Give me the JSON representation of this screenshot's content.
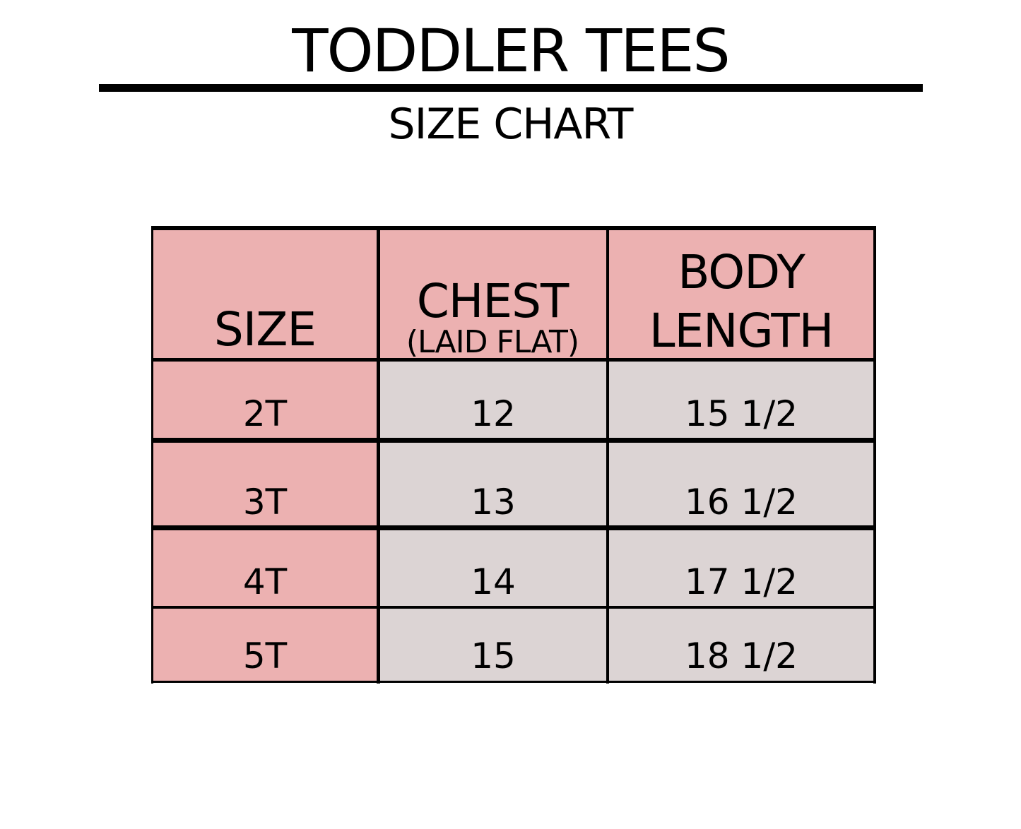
{
  "title": "TODDLER TEES",
  "subtitle": "SIZE CHART",
  "colors": {
    "header_fill": "#ecb1b1",
    "size_column_fill": "#ecb1b1",
    "value_fill": "#dcd4d4",
    "border": "#000000"
  },
  "table": {
    "headers": {
      "size": "SIZE",
      "chest": "CHEST",
      "chest_note": "(LAID FLAT)",
      "body_line1": "BODY",
      "body_line2": "LENGTH"
    },
    "rows": [
      {
        "size": "2T",
        "chest": "12",
        "body_length": "15 1/2"
      },
      {
        "size": "3T",
        "chest": "13",
        "body_length": "16 1/2"
      },
      {
        "size": "4T",
        "chest": "14",
        "body_length": "17 1/2"
      },
      {
        "size": "5T",
        "chest": "15",
        "body_length": "18 1/2"
      }
    ]
  }
}
